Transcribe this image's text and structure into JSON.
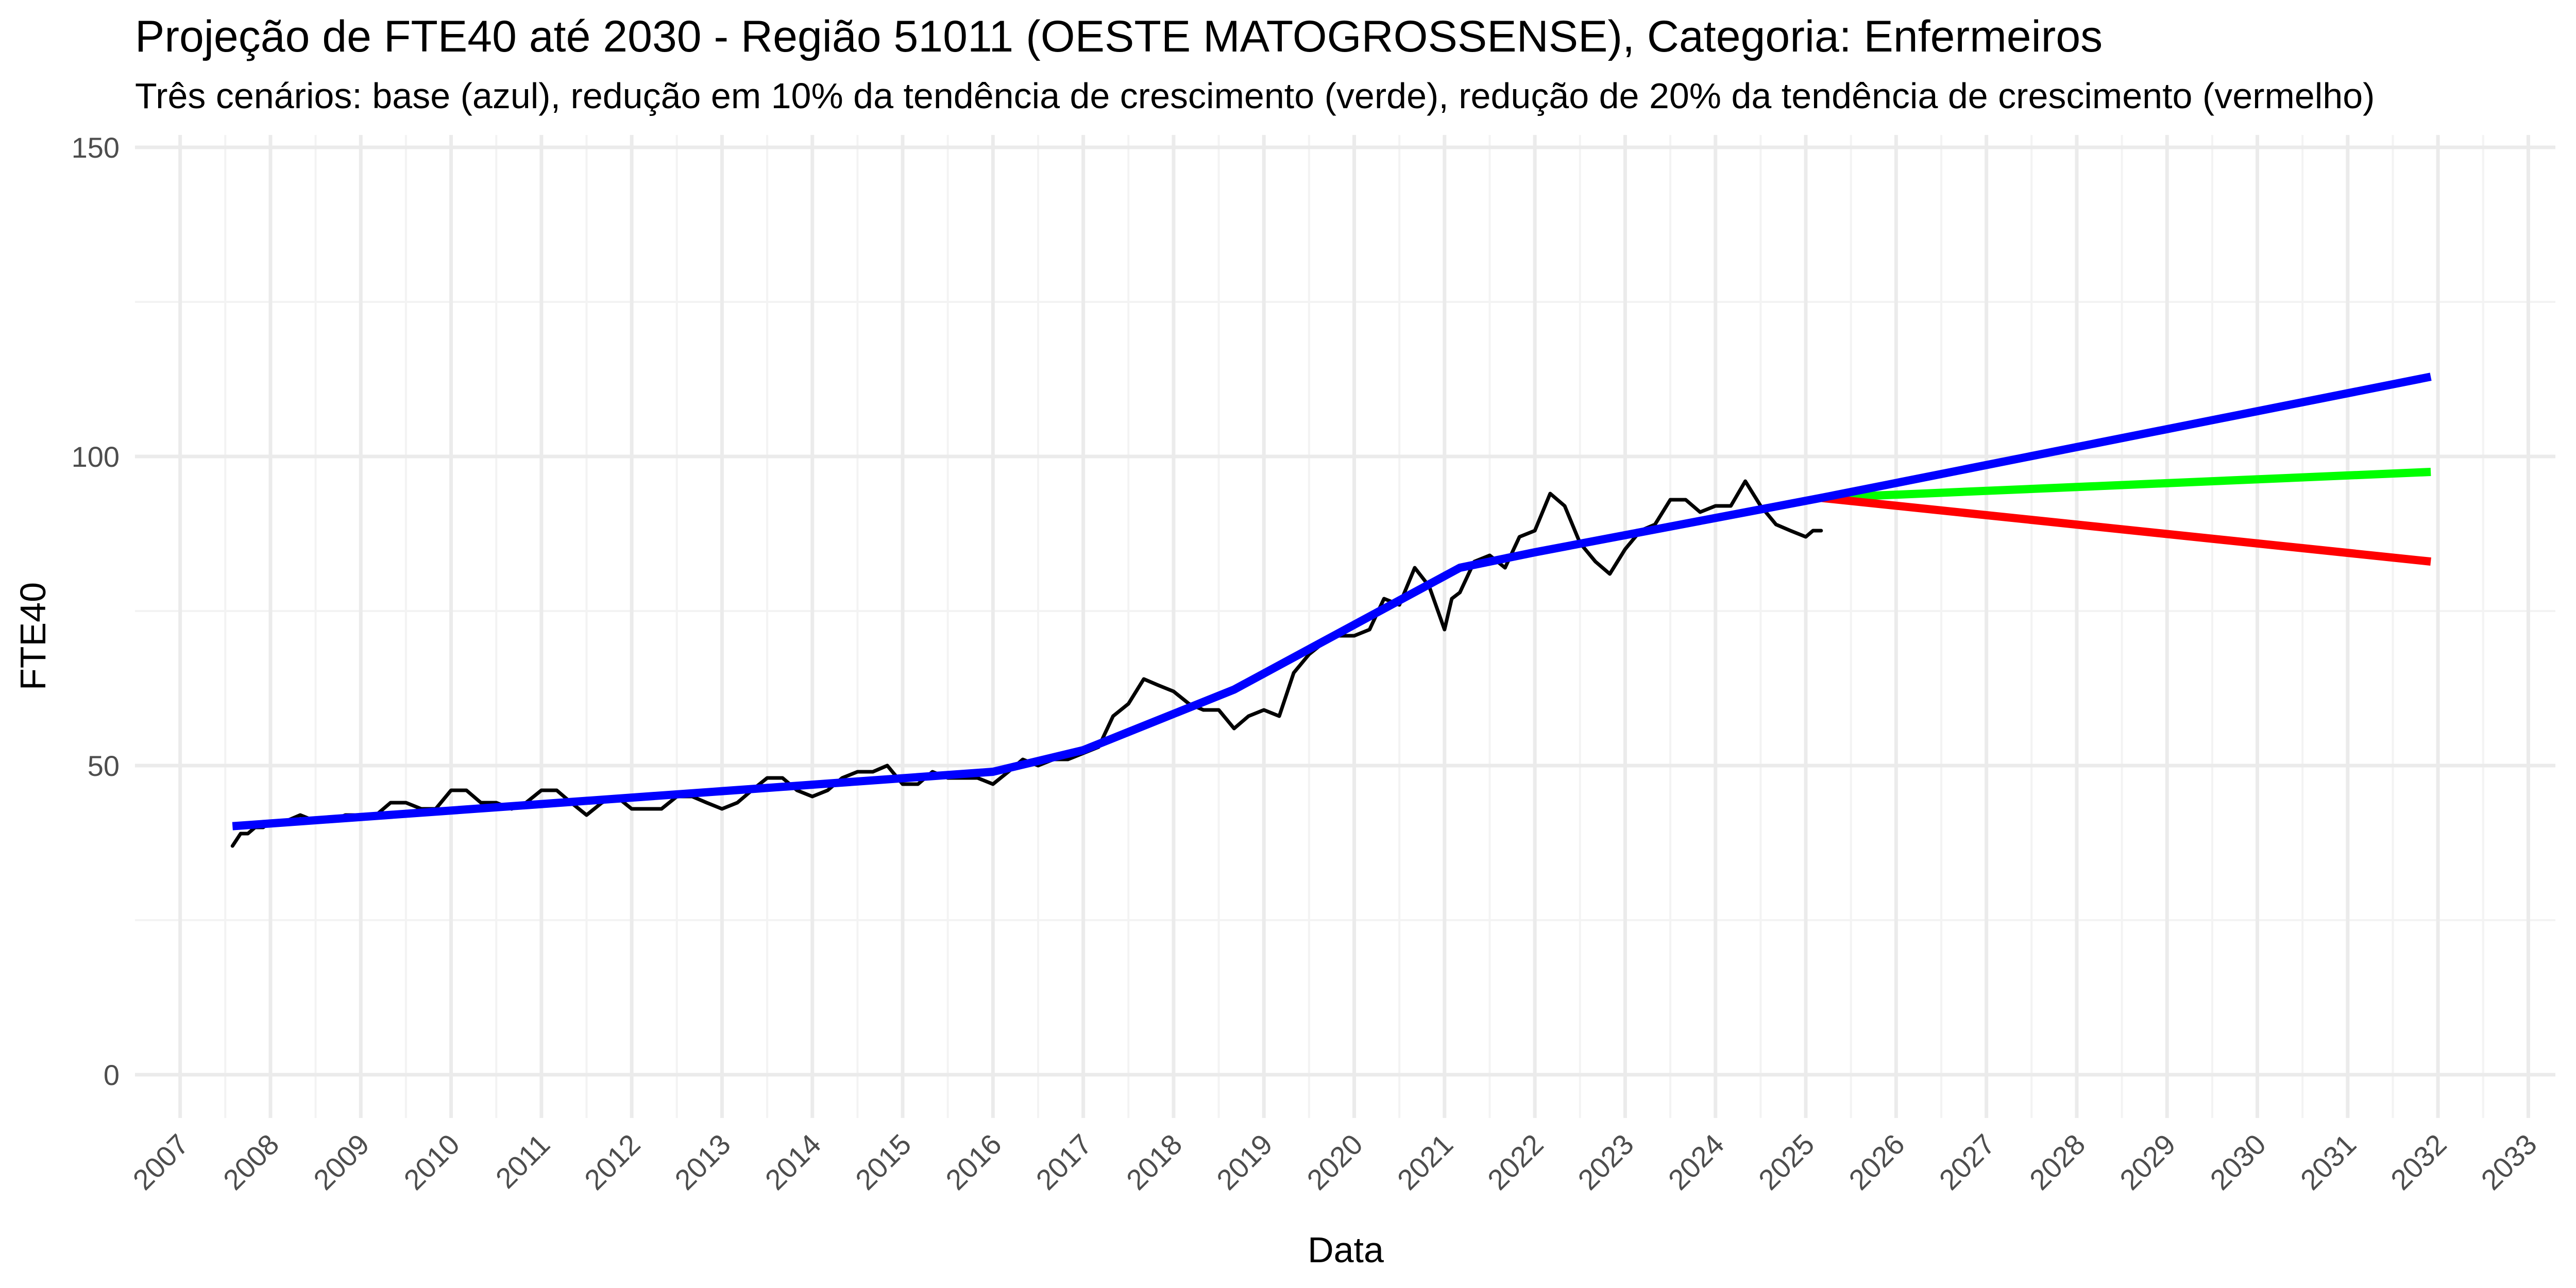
{
  "chart_data": {
    "type": "line",
    "title": "Projeção de FTE40 até 2030 - Região 51011 (OESTE MATOGROSSENSE), Categoria: Enfermeiros",
    "subtitle": "Três cenários: base (azul), redução em 10% da tendência de crescimento (verde), redução de 20% da tendência de crescimento (vermelho)",
    "xlabel": "Data",
    "ylabel": "FTE40",
    "xlim": [
      2006.5,
      2033.3
    ],
    "ylim": [
      -7,
      152
    ],
    "x_ticks": [
      2007,
      2008,
      2009,
      2010,
      2011,
      2012,
      2013,
      2014,
      2015,
      2016,
      2017,
      2018,
      2019,
      2020,
      2021,
      2022,
      2023,
      2024,
      2025,
      2026,
      2027,
      2028,
      2029,
      2030,
      2031,
      2032,
      2033
    ],
    "y_ticks": [
      0,
      50,
      100,
      150
    ],
    "grid": true,
    "legend": "none",
    "series": [
      {
        "role": "observed",
        "color": "#000000",
        "x": [
          2007.58,
          2007.67,
          2007.75,
          2007.83,
          2007.92,
          2008.0,
          2008.17,
          2008.33,
          2008.5,
          2008.67,
          2008.83,
          2009.0,
          2009.17,
          2009.33,
          2009.5,
          2009.67,
          2009.83,
          2010.0,
          2010.17,
          2010.33,
          2010.5,
          2010.67,
          2010.83,
          2011.0,
          2011.17,
          2011.33,
          2011.5,
          2011.67,
          2011.83,
          2012.0,
          2012.17,
          2012.33,
          2012.5,
          2012.67,
          2012.83,
          2013.0,
          2013.17,
          2013.33,
          2013.5,
          2013.67,
          2013.83,
          2014.0,
          2014.17,
          2014.33,
          2014.5,
          2014.67,
          2014.83,
          2015.0,
          2015.17,
          2015.33,
          2015.5,
          2015.67,
          2015.83,
          2016.0,
          2016.17,
          2016.33,
          2016.5,
          2016.67,
          2016.83,
          2017.0,
          2017.17,
          2017.33,
          2017.5,
          2017.67,
          2017.83,
          2018.0,
          2018.17,
          2018.33,
          2018.5,
          2018.67,
          2018.83,
          2019.0,
          2019.17,
          2019.33,
          2019.5,
          2019.67,
          2019.83,
          2020.0,
          2020.17,
          2020.33,
          2020.5,
          2020.67,
          2020.83,
          2021.0,
          2021.08,
          2021.17,
          2021.33,
          2021.5,
          2021.67,
          2021.83,
          2022.0,
          2022.17,
          2022.33,
          2022.5,
          2022.67,
          2022.83,
          2023.0,
          2023.17,
          2023.33,
          2023.5,
          2023.67,
          2023.83,
          2024.0,
          2024.17,
          2024.33,
          2024.5,
          2024.67,
          2024.83,
          2025.0,
          2025.08,
          2025.17
        ],
        "y": [
          37,
          39,
          39,
          40,
          40,
          41,
          41,
          42,
          41,
          41,
          42,
          42,
          42,
          44,
          44,
          43,
          43,
          46,
          46,
          44,
          44,
          43,
          44,
          46,
          46,
          44,
          42,
          44,
          45,
          43,
          43,
          43,
          45,
          45,
          44,
          43,
          44,
          46,
          48,
          48,
          46,
          45,
          46,
          48,
          49,
          49,
          50,
          47,
          47,
          49,
          48,
          48,
          48,
          47,
          49,
          51,
          50,
          51,
          51,
          52,
          53,
          58,
          60,
          64,
          63,
          62,
          60,
          59,
          59,
          56,
          58,
          59,
          58,
          65,
          68,
          70,
          71,
          71,
          72,
          77,
          76,
          82,
          79,
          72,
          77,
          78,
          83,
          84,
          82,
          87,
          88,
          94,
          92,
          86,
          83,
          81,
          85,
          88,
          89,
          93,
          93,
          91,
          92,
          92,
          96,
          92,
          89,
          88,
          87,
          88,
          88
        ]
      },
      {
        "name": "base (azul)",
        "color": "#0000ff",
        "x": [
          2007.58,
          2016.0,
          2017.0,
          2018.67,
          2021.17,
          2022.0,
          2025.17,
          2031.92
        ],
        "y": [
          40.2,
          49.0,
          52.5,
          62.3,
          82.0,
          84.5,
          93.3,
          112.9
        ]
      },
      {
        "name": "redução em 10% da tendência de crescimento (verde)",
        "color": "#00ff00",
        "x": [
          2025.17,
          2031.92
        ],
        "y": [
          93.3,
          97.5
        ]
      },
      {
        "name": "redução de 20% da tendência de crescimento (vermelho)",
        "color": "#ff0000",
        "x": [
          2025.17,
          2031.92
        ],
        "y": [
          93.3,
          83.0
        ]
      }
    ]
  }
}
